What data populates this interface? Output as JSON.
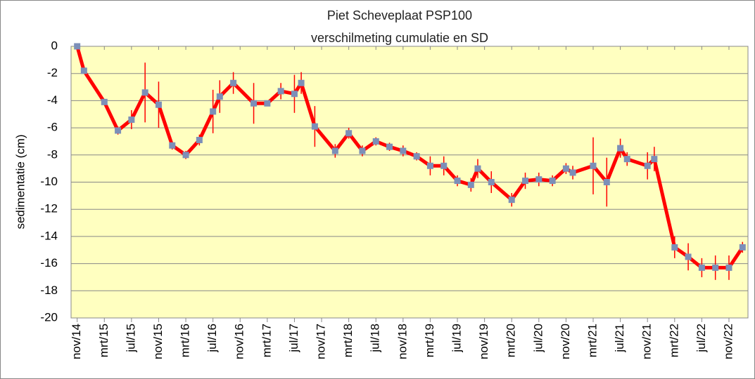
{
  "chart_data": {
    "type": "line",
    "title": "Piet Scheveplaat PSP100",
    "subtitle": "verschilmeting cumulatie en SD",
    "y_label": "sedimentatie (cm)",
    "x": [
      0,
      1,
      4,
      6,
      8,
      10,
      12,
      14,
      16,
      18,
      20,
      21,
      23,
      26,
      28,
      30,
      32,
      33,
      35,
      38,
      40,
      42,
      44,
      46,
      48,
      50,
      52,
      54,
      56,
      58,
      59,
      61,
      64,
      66,
      68,
      70,
      72,
      73,
      76,
      78,
      80,
      81,
      84,
      85,
      88,
      90,
      92,
      94,
      96,
      98
    ],
    "series": [
      {
        "color": "#ff0000",
        "marker_color": "#7c8fb8",
        "values": [
          0,
          -1.8,
          -4.1,
          -6.2,
          -5.4,
          -3.4,
          -4.3,
          -7.3,
          -8.0,
          -6.9,
          -4.8,
          -3.7,
          -2.7,
          -4.2,
          -4.2,
          -3.3,
          -3.5,
          -2.7,
          -5.9,
          -7.7,
          -6.4,
          -7.7,
          -7.0,
          -7.4,
          -7.7,
          -8.1,
          -8.8,
          -8.8,
          -9.9,
          -10.2,
          -9.0,
          -10.0,
          -11.3,
          -9.9,
          -9.8,
          -9.9,
          -9.0,
          -9.3,
          -8.8,
          -10.0,
          -7.5,
          -8.3,
          -8.8,
          -8.3,
          -14.8,
          -15.5,
          -16.3,
          -16.3,
          -16.3,
          -14.8
        ],
        "errors": [
          0,
          0.2,
          0.1,
          0.3,
          0.7,
          2.2,
          1.7,
          0.3,
          0.3,
          0.4,
          1.6,
          1.2,
          0.8,
          1.5,
          0.2,
          0.6,
          1.4,
          0.8,
          1.5,
          0.5,
          0.4,
          0.4,
          0.3,
          0.3,
          0.4,
          0.3,
          0.7,
          0.7,
          0.4,
          0.5,
          0.7,
          0.8,
          0.5,
          0.6,
          0.5,
          0.4,
          0.4,
          0.5,
          2.1,
          1.8,
          0.7,
          0.5,
          1.0,
          0.9,
          0.8,
          1.0,
          0.7,
          0.9,
          0.9,
          0.4
        ]
      }
    ],
    "xlim": [
      -0.9,
      98.8
    ],
    "xticks": [
      {
        "value": 0,
        "label": "nov/14"
      },
      {
        "value": 4,
        "label": "mrt/15"
      },
      {
        "value": 8,
        "label": "jul/15"
      },
      {
        "value": 12,
        "label": "nov/15"
      },
      {
        "value": 16,
        "label": "mrt/16"
      },
      {
        "value": 20,
        "label": "jul/16"
      },
      {
        "value": 24,
        "label": "nov/16"
      },
      {
        "value": 28,
        "label": "mrt/17"
      },
      {
        "value": 32,
        "label": "jul/17"
      },
      {
        "value": 36,
        "label": "nov/17"
      },
      {
        "value": 40,
        "label": "mrt/18"
      },
      {
        "value": 44,
        "label": "jul/18"
      },
      {
        "value": 48,
        "label": "nov/18"
      },
      {
        "value": 52,
        "label": "mrt/19"
      },
      {
        "value": 56,
        "label": "jul/19"
      },
      {
        "value": 60,
        "label": "nov/19"
      },
      {
        "value": 64,
        "label": "mrt/20"
      },
      {
        "value": 68,
        "label": "jul/20"
      },
      {
        "value": 72,
        "label": "nov/20"
      },
      {
        "value": 76,
        "label": "mrt/21"
      },
      {
        "value": 80,
        "label": "jul/21"
      },
      {
        "value": 84,
        "label": "nov/21"
      },
      {
        "value": 88,
        "label": "mrt/22"
      },
      {
        "value": 92,
        "label": "jul/22"
      },
      {
        "value": 96,
        "label": "nov/22"
      }
    ],
    "ylim": [
      -20,
      0
    ],
    "yticks": [
      0,
      -2,
      -4,
      -6,
      -8,
      -10,
      -12,
      -14,
      -16,
      -18,
      -20
    ],
    "grid": true,
    "plot_background": "#ffffc0"
  }
}
